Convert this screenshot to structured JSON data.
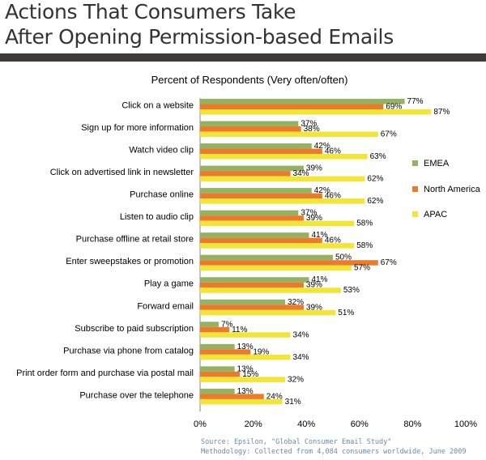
{
  "header": {
    "title_line1": "Actions That Consumers Take",
    "title_line2": "After Opening Permission-based Emails"
  },
  "footer": {
    "source": "Source: Epsilon, \"Global Consumer Email Study\"",
    "methodology": "Methodology:  Collected from 4,084 consumers worldwide, June 2009"
  },
  "colors": {
    "EMEA": "#93b363",
    "North America": "#ec7a2c",
    "APAC": "#f3e535",
    "header_bar": "#3f3a36"
  },
  "chart_data": {
    "type": "bar",
    "orientation": "horizontal",
    "title": "Percent of Respondents (Very often/often)",
    "categories": [
      "Click on a website",
      "Sign up for more information",
      "Watch video clip",
      "Click on advertised link in newsletter",
      "Purchase online",
      "Listen to audio clip",
      "Purchase offline at retail store",
      "Enter sweepstakes or promotion",
      "Play a game",
      "Forward email",
      "Subscribe to paid subscription",
      "Purchase via phone from catalog",
      "Print order form and purchase via postal mail",
      "Purchase over the telephone"
    ],
    "series": [
      {
        "name": "EMEA",
        "values": [
          77,
          37,
          42,
          39,
          42,
          37,
          41,
          50,
          41,
          32,
          7,
          13,
          13,
          13
        ]
      },
      {
        "name": "North America",
        "values": [
          69,
          38,
          46,
          34,
          46,
          39,
          46,
          67,
          39,
          39,
          11,
          19,
          15,
          24
        ]
      },
      {
        "name": "APAC",
        "values": [
          87,
          67,
          63,
          62,
          62,
          58,
          58,
          57,
          53,
          51,
          34,
          34,
          32,
          31
        ]
      }
    ],
    "xlim": [
      0,
      100
    ],
    "xticks": [
      "0%",
      "20%",
      "40%",
      "60%",
      "80%",
      "100%"
    ],
    "legend_position": "right",
    "grid": false
  }
}
